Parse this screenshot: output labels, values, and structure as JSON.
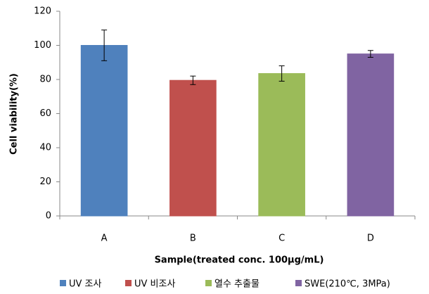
{
  "chart_data": {
    "type": "bar",
    "x_label": "Sample(treated conc. 100μg/mL)",
    "y_label": "Cell viability(%)",
    "categories": [
      "A",
      "B",
      "C",
      "D"
    ],
    "values": [
      100,
      79.5,
      83.5,
      95
    ],
    "errors": [
      9,
      2.5,
      4.5,
      2
    ],
    "colors": [
      "#4f81bd",
      "#c0504d",
      "#9bbb59",
      "#8064a2"
    ],
    "legend": [
      "UV 조사",
      "UV 비조사",
      "열수 추출물",
      "SWE(210℃, 3MPa)"
    ],
    "ylim": [
      0,
      120
    ],
    "yticks": [
      0,
      20,
      40,
      60,
      80,
      100,
      120
    ],
    "grid": false
  }
}
